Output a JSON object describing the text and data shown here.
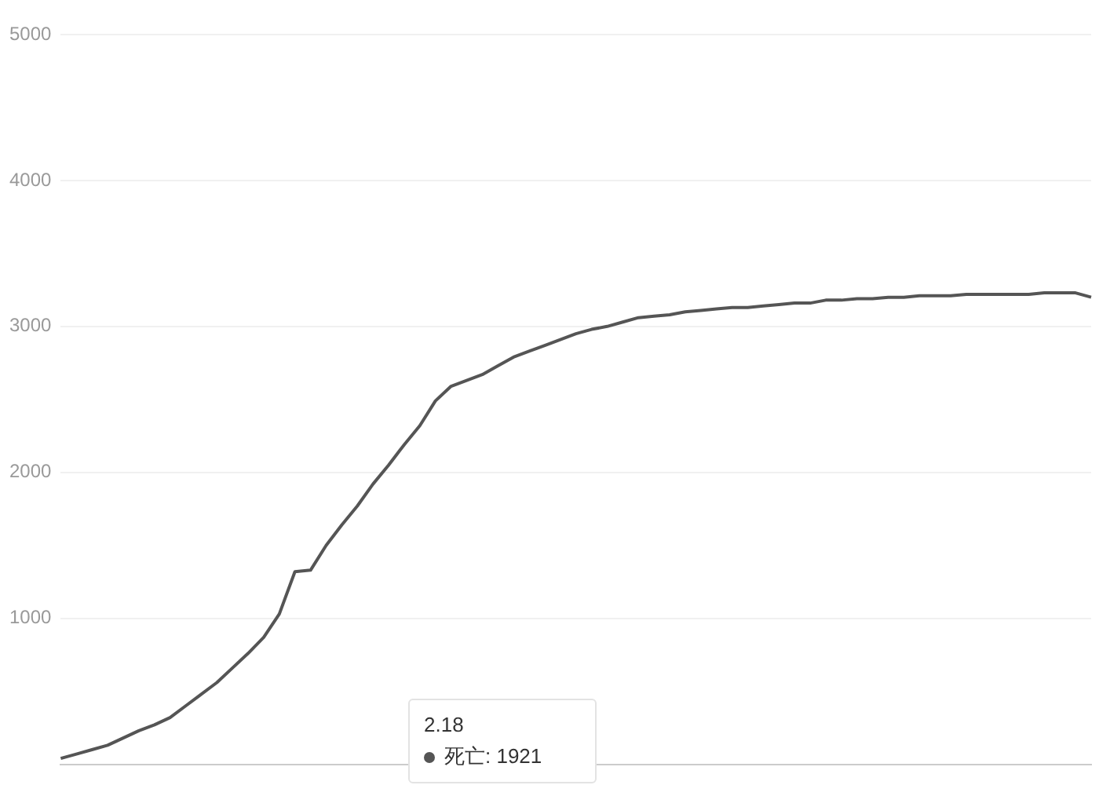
{
  "chart_data": {
    "type": "line",
    "categories": [
      null,
      null,
      null,
      null,
      null,
      null,
      null,
      null,
      null,
      null,
      null,
      null,
      null,
      null,
      null,
      null,
      null,
      null,
      null,
      null,
      null,
      null,
      null,
      null,
      null,
      null,
      null,
      null,
      null,
      null,
      null,
      null,
      null,
      null,
      null,
      null,
      null,
      null,
      null,
      null,
      null,
      null,
      null,
      null,
      null,
      null,
      null,
      null,
      null,
      null,
      null,
      null,
      null,
      null,
      null,
      null,
      null,
      null,
      null,
      null,
      null,
      null,
      null,
      null,
      null,
      null,
      null
    ],
    "series": [
      {
        "color": "#555555",
        "values": [
          40,
          70,
          100,
          130,
          180,
          230,
          270,
          320,
          400,
          480,
          560,
          660,
          760,
          870,
          1030,
          1320,
          1330,
          1500,
          1640,
          1770,
          1920,
          2050,
          2190,
          2320,
          2490,
          2590,
          2630,
          2670,
          2730,
          2790,
          2830,
          2870,
          2910,
          2950,
          2980,
          3000,
          3030,
          3060,
          3070,
          3080,
          3100,
          3110,
          3120,
          3130,
          3130,
          3140,
          3150,
          3160,
          3160,
          3180,
          3180,
          3190,
          3190,
          3200,
          3200,
          3210,
          3210,
          3210,
          3220,
          3220,
          3220,
          3220,
          3220,
          3230,
          3230,
          3230,
          3200
        ]
      }
    ],
    "ylim": [
      0,
      5000
    ],
    "yticks": [
      1000,
      2000,
      3000,
      4000,
      5000
    ],
    "grid": "y",
    "marker": "none",
    "line_style": "solid",
    "tick_labels": "y",
    "annotations": [
      "2.18",
      "死亡: 1921"
    ]
  }
}
